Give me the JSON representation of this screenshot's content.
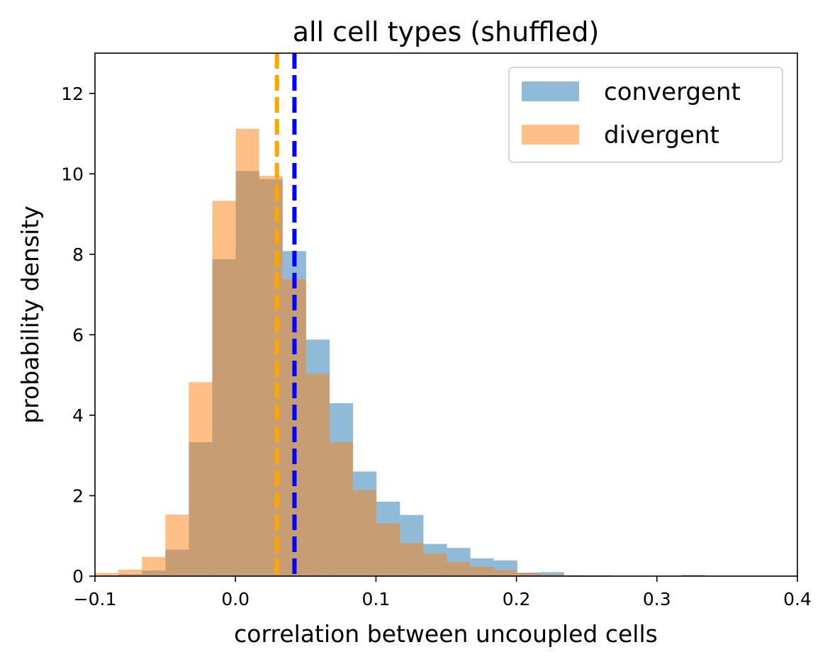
{
  "chart_data": {
    "type": "bar",
    "title": "all cell types (shuffled)",
    "xlabel": "correlation between uncoupled cells",
    "ylabel": "probability density",
    "xlim": [
      -0.1,
      0.4
    ],
    "ylim": [
      0,
      13
    ],
    "xticks": [
      -0.1,
      0.0,
      0.1,
      0.2,
      0.3,
      0.4
    ],
    "xtick_labels": [
      "−0.1",
      "0.0",
      "0.1",
      "0.2",
      "0.3",
      "0.4"
    ],
    "yticks": [
      0,
      2,
      4,
      6,
      8,
      10,
      12
    ],
    "ytick_labels": [
      "0",
      "2",
      "4",
      "6",
      "8",
      "10",
      "12"
    ],
    "grid": false,
    "legend_position": "top-right",
    "bin_edges": [
      -0.1,
      -0.0833,
      -0.0666,
      -0.0499,
      -0.0332,
      -0.0165,
      0.0002,
      0.0169,
      0.0336,
      0.0503,
      0.067,
      0.0837,
      0.1004,
      0.1171,
      0.1338,
      0.1505,
      0.1672,
      0.1839,
      0.2006,
      0.2173,
      0.234,
      0.2507,
      0.2674,
      0.2841,
      0.3008,
      0.3175,
      0.3342,
      0.3509
    ],
    "series": [
      {
        "name": "convergent",
        "color": "#1f77b4",
        "opacity": 0.5,
        "values": [
          0.02,
          0.05,
          0.14,
          0.66,
          3.33,
          7.88,
          10.07,
          9.87,
          8.08,
          5.88,
          4.3,
          2.6,
          1.85,
          1.52,
          0.8,
          0.7,
          0.44,
          0.39,
          0.09,
          0.1,
          0.02,
          0.02,
          0.0,
          0.0,
          0.0,
          0.03,
          0.0
        ]
      },
      {
        "name": "divergent",
        "color": "#ff7f0e",
        "opacity": 0.5,
        "values": [
          0.08,
          0.16,
          0.48,
          1.53,
          4.82,
          9.33,
          11.12,
          9.95,
          7.38,
          5.03,
          3.33,
          2.14,
          1.31,
          0.82,
          0.56,
          0.35,
          0.23,
          0.15,
          0.07,
          0.04,
          0.02,
          0.01,
          0.0,
          0.0,
          0.0,
          0.01,
          0.0
        ]
      }
    ],
    "vlines": [
      {
        "series": "divergent",
        "x": 0.0295,
        "color": "#ffa500",
        "style": "dashed"
      },
      {
        "series": "convergent",
        "x": 0.042,
        "color": "#0000ff",
        "style": "dashed"
      }
    ]
  }
}
